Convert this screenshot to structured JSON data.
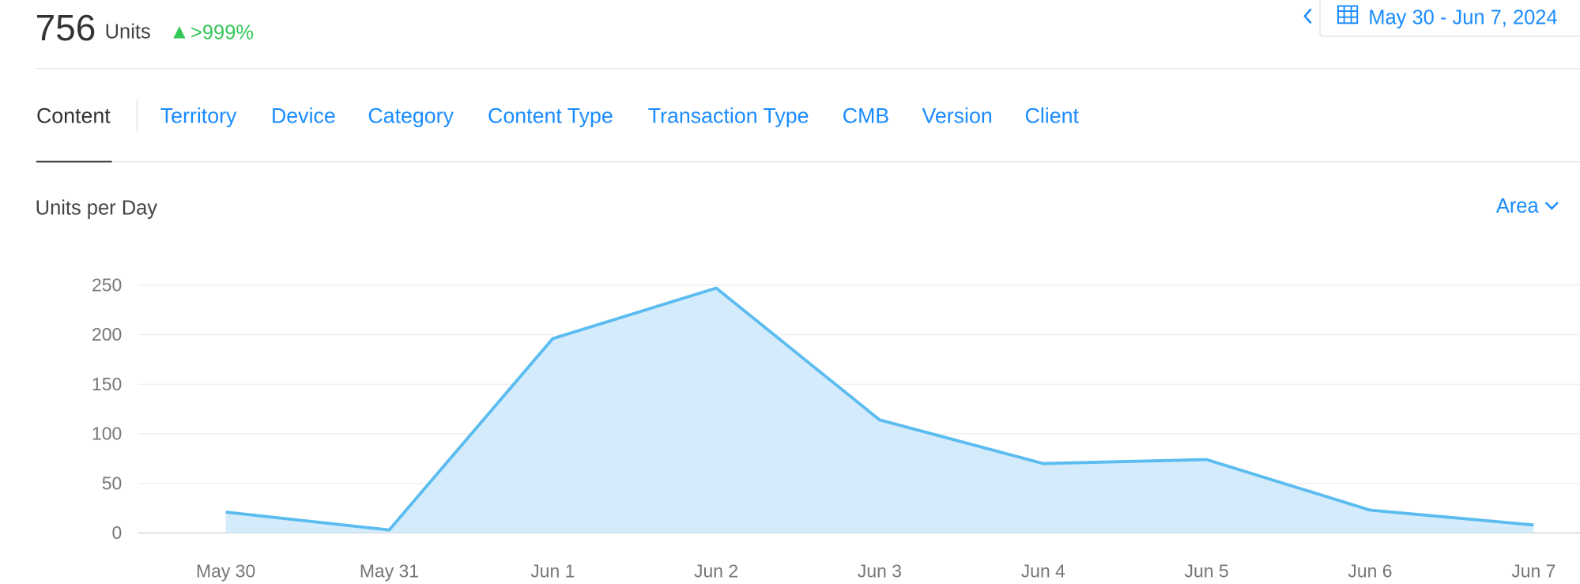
{
  "header": {
    "total": "756",
    "unit": "Units",
    "change": ">999%",
    "date_range": "May 30 - Jun 7, 2024"
  },
  "tabs": [
    "Content",
    "Territory",
    "Device",
    "Category",
    "Content Type",
    "Transaction Type",
    "CMB",
    "Version",
    "Client"
  ],
  "chart_data": {
    "type": "area",
    "title": "Units per Day",
    "view_selector": "Area",
    "categories": [
      "May 30",
      "May 31",
      "Jun 1",
      "Jun 2",
      "Jun 3",
      "Jun 4",
      "Jun 5",
      "Jun 6",
      "Jun 7"
    ],
    "values": [
      21,
      3,
      196,
      247,
      114,
      70,
      74,
      23,
      8
    ],
    "color": "#5bbcf0",
    "fill": "#d4ebfb",
    "ylim": [
      0,
      250
    ],
    "yticks": [
      0,
      50,
      100,
      150,
      200,
      250
    ],
    "grid": true
  }
}
